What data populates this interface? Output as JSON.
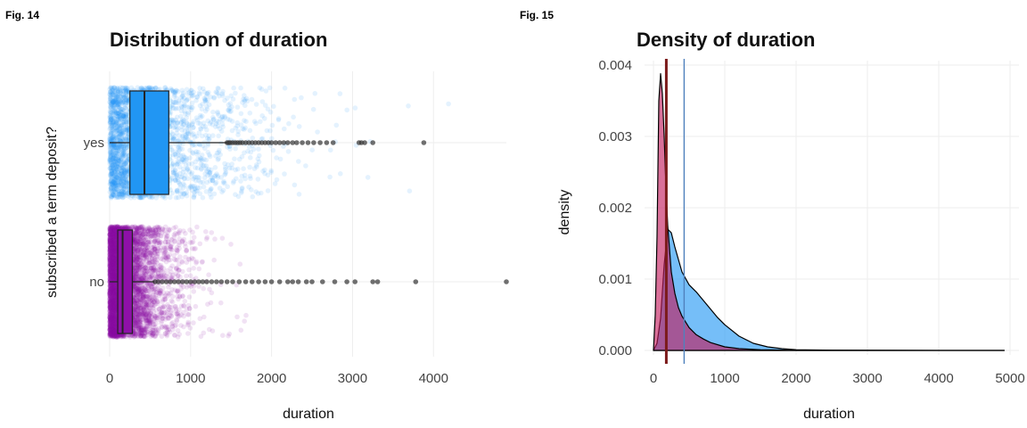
{
  "chart_data": [
    {
      "fig_label": "Fig. 14",
      "type": "boxplot",
      "title": "Distribution of duration",
      "xlabel": "duration",
      "ylabel": "subscribed a term deposit?",
      "xlim": [
        0,
        4900
      ],
      "x_ticks": [
        0,
        1000,
        2000,
        3000,
        4000
      ],
      "x_tick_labels": [
        "0",
        "1000",
        "2000",
        "3000",
        "4000"
      ],
      "categories": [
        "yes",
        "no"
      ],
      "jitter_colors": {
        "yes": "#2196F3",
        "no": "#8E10A8"
      },
      "box_colors": {
        "yes": "#2196F3",
        "no": "#8E10A8"
      },
      "outlier_color": "#333333",
      "boxes": [
        {
          "category": "yes",
          "q1": 250,
          "median": 430,
          "q3": 730,
          "whisker_low": 0,
          "whisker_high": 1450,
          "outliers": [
            1450,
            1470,
            1490,
            1520,
            1550,
            1580,
            1610,
            1640,
            1680,
            1720,
            1760,
            1800,
            1840,
            1880,
            1920,
            1960,
            2000,
            2050,
            2100,
            2150,
            2200,
            2260,
            2310,
            2380,
            2450,
            2520,
            2600,
            2680,
            2760,
            3080,
            3110,
            3150,
            3250,
            3880
          ]
        },
        {
          "category": "no",
          "q1": 100,
          "median": 160,
          "q3": 280,
          "whisker_low": 0,
          "whisker_high": 550,
          "outliers": [
            560,
            600,
            650,
            700,
            750,
            800,
            850,
            900,
            950,
            1000,
            1050,
            1100,
            1150,
            1200,
            1260,
            1320,
            1380,
            1450,
            1520,
            1600,
            1680,
            1760,
            1840,
            1920,
            2000,
            2100,
            2200,
            2260,
            2330,
            2430,
            2500,
            2630,
            2780,
            2930,
            3030,
            3250,
            3310,
            3780,
            4900
          ]
        }
      ]
    },
    {
      "fig_label": "Fig. 15",
      "type": "density",
      "title": "Density of duration",
      "xlabel": "duration",
      "ylabel": "density",
      "xlim": [
        0,
        5000
      ],
      "ylim": [
        0,
        0.004
      ],
      "x_ticks": [
        0,
        1000,
        2000,
        3000,
        4000,
        5000
      ],
      "x_tick_labels": [
        "0",
        "1000",
        "2000",
        "3000",
        "4000",
        "5000"
      ],
      "y_ticks": [
        0,
        0.001,
        0.002,
        0.003,
        0.004
      ],
      "y_tick_labels": [
        "0.000",
        "0.001",
        "0.002",
        "0.003",
        "0.004"
      ],
      "series": [
        {
          "category": "yes",
          "color": "#2196F3",
          "x": [
            0,
            50,
            100,
            150,
            200,
            250,
            300,
            400,
            500,
            600,
            700,
            800,
            900,
            1000,
            1200,
            1400,
            1600,
            1800,
            2000,
            2500,
            3000,
            3500,
            4000,
            4500,
            4918
          ],
          "y": [
            0,
            0.0001,
            0.00045,
            0.0012,
            0.0017,
            0.00165,
            0.00145,
            0.0011,
            0.00092,
            0.00082,
            0.0007,
            0.00058,
            0.00046,
            0.00036,
            0.0002,
            0.0001,
            5e-05,
            2.5e-05,
            1e-05,
            4e-06,
            2e-06,
            1e-06,
            5e-07,
            0,
            0
          ]
        },
        {
          "category": "no",
          "color": "#C2185B",
          "x": [
            0,
            25,
            50,
            75,
            100,
            125,
            150,
            175,
            200,
            250,
            300,
            350,
            400,
            500,
            600,
            700,
            800,
            1000,
            1200,
            1500,
            2000,
            2500,
            3000,
            4000,
            4918
          ],
          "y": [
            0,
            0.0005,
            0.0016,
            0.0035,
            0.00388,
            0.0036,
            0.003,
            0.0023,
            0.00175,
            0.0011,
            0.0008,
            0.0006,
            0.00048,
            0.00032,
            0.00022,
            0.00016,
            0.00011,
            5e-05,
            2.5e-05,
            1e-05,
            3e-06,
            2e-06,
            1e-06,
            0,
            0
          ]
        }
      ],
      "vlines": [
        {
          "x": 180,
          "color": "#7B1A1A"
        },
        {
          "x": 430,
          "color": "#4F81BD"
        }
      ]
    }
  ]
}
